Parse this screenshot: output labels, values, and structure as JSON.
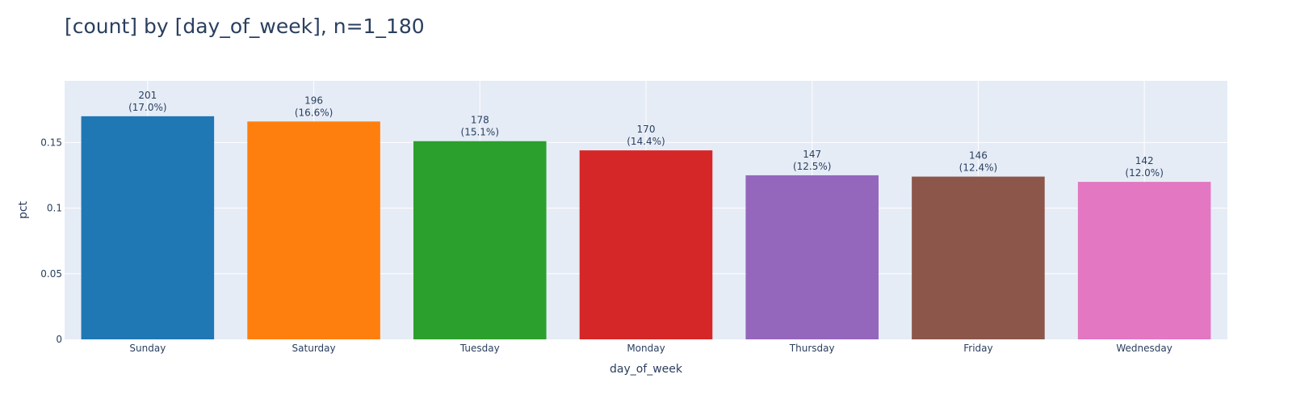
{
  "chart_data": {
    "type": "bar",
    "title": "[count] by [day_of_week], n=1_180",
    "xlabel": "day_of_week",
    "ylabel": "pct",
    "categories": [
      "Sunday",
      "Saturday",
      "Tuesday",
      "Monday",
      "Thursday",
      "Friday",
      "Wednesday"
    ],
    "counts": [
      201,
      196,
      178,
      170,
      147,
      146,
      142
    ],
    "values": [
      0.17,
      0.166,
      0.151,
      0.144,
      0.125,
      0.124,
      0.12
    ],
    "data_labels_line1": [
      "201",
      "196",
      "178",
      "170",
      "147",
      "146",
      "142"
    ],
    "data_labels_line2": [
      "(17.0%)",
      "(16.6%)",
      "(15.1%)",
      "(14.4%)",
      "(12.5%)",
      "(12.4%)",
      "(12.0%)"
    ],
    "colors": [
      "#1f77b4",
      "#ff7f0e",
      "#2ca02c",
      "#d62728",
      "#9467bd",
      "#8c564b",
      "#e377c2"
    ],
    "y_ticks": [
      0,
      0.05,
      0.1,
      0.15
    ],
    "y_tick_labels": [
      "0",
      "0.05",
      "0.1",
      "0.15"
    ],
    "ylim": [
      0,
      0.197
    ],
    "grid": true,
    "plot_background": "#e5ecf6",
    "legend": "none"
  }
}
